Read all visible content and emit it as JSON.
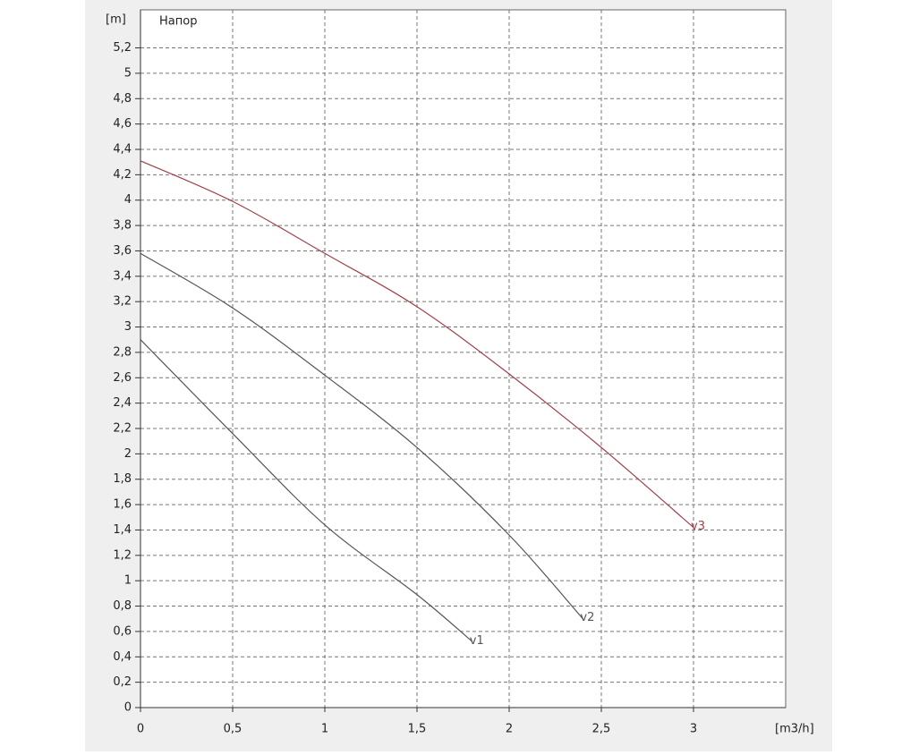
{
  "chart_data": {
    "type": "line",
    "title": "Напор",
    "y_label": "[m]",
    "x_label": "[m3/h]",
    "xlim": [
      0,
      3.5
    ],
    "ylim": [
      0,
      5.5
    ],
    "xticks": [
      0,
      {
        "value": 0.5,
        "label": "0,5"
      },
      1,
      {
        "value": 1.5,
        "label": "1,5"
      },
      2,
      {
        "value": 2.5,
        "label": "2,5"
      },
      3
    ],
    "yticks": [
      0,
      {
        "value": 0.2,
        "label": "0,2"
      },
      {
        "value": 0.4,
        "label": "0,4"
      },
      {
        "value": 0.6,
        "label": "0,6"
      },
      {
        "value": 0.8,
        "label": "0,8"
      },
      1,
      {
        "value": 1.2,
        "label": "1,2"
      },
      {
        "value": 1.4,
        "label": "1,4"
      },
      {
        "value": 1.6,
        "label": "1,6"
      },
      {
        "value": 1.8,
        "label": "1,8"
      },
      2,
      {
        "value": 2.2,
        "label": "2,2"
      },
      {
        "value": 2.4,
        "label": "2,4"
      },
      {
        "value": 2.6,
        "label": "2,6"
      },
      {
        "value": 2.8,
        "label": "2,8"
      },
      3,
      {
        "value": 3.2,
        "label": "3,2"
      },
      {
        "value": 3.4,
        "label": "3,4"
      },
      {
        "value": 3.6,
        "label": "3,6"
      },
      {
        "value": 3.8,
        "label": "3,8"
      },
      4,
      {
        "value": 4.2,
        "label": "4,2"
      },
      {
        "value": 4.4,
        "label": "4,4"
      },
      {
        "value": 4.6,
        "label": "4,6"
      },
      {
        "value": 4.8,
        "label": "4,8"
      },
      5,
      {
        "value": 5.2,
        "label": "5,2"
      }
    ],
    "grid": true,
    "series": [
      {
        "name": "v1",
        "color": "#555555",
        "x": [
          0,
          0.5,
          1,
          1.5,
          1.8
        ],
        "values": [
          2.9,
          2.16,
          1.44,
          0.89,
          0.52
        ]
      },
      {
        "name": "v2",
        "color": "#555555",
        "x": [
          0,
          0.5,
          1,
          1.5,
          2,
          2.4
        ],
        "values": [
          3.58,
          3.15,
          2.62,
          2.05,
          1.36,
          0.7
        ]
      },
      {
        "name": "v3",
        "color": "#a0404a",
        "x": [
          0,
          0.5,
          1,
          1.5,
          2,
          2.5,
          3
        ],
        "values": [
          4.31,
          3.99,
          3.58,
          3.16,
          2.63,
          2.05,
          1.42
        ]
      }
    ]
  }
}
